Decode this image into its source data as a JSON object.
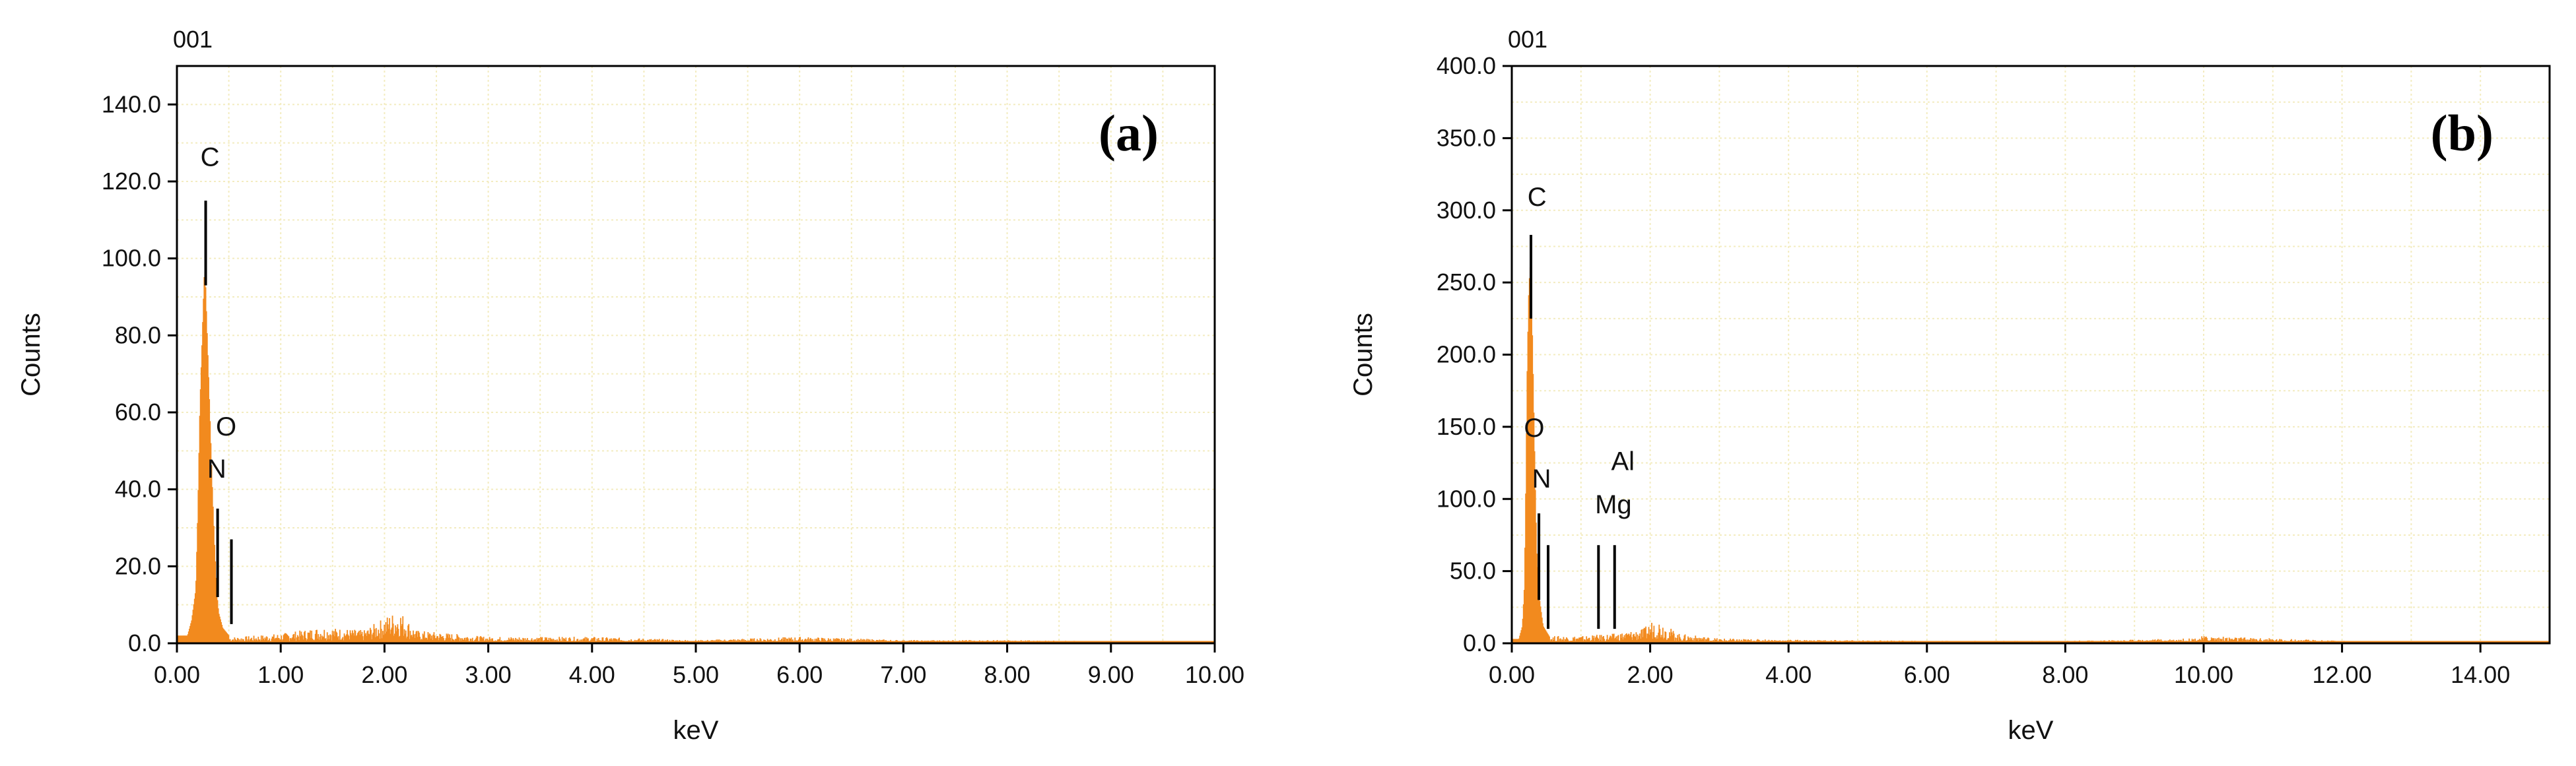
{
  "chart_data": [
    {
      "type": "bar",
      "panel_label": "(a)",
      "spectrum_id": "001",
      "xlabel": "keV",
      "ylabel": "Counts",
      "xlim": [
        0,
        10
      ],
      "ylim": [
        0,
        150
      ],
      "x_ticks": [
        "0.00",
        "1.00",
        "2.00",
        "3.00",
        "4.00",
        "5.00",
        "6.00",
        "7.00",
        "8.00",
        "9.00",
        "10.00"
      ],
      "x_tick_values": [
        0,
        1,
        2,
        3,
        4,
        5,
        6,
        7,
        8,
        9,
        10
      ],
      "y_ticks": [
        "0.0",
        "20.0",
        "40.0",
        "60.0",
        "80.0",
        "100.0",
        "120.0",
        "140.0"
      ],
      "y_tick_values": [
        0,
        20,
        40,
        60,
        80,
        100,
        120,
        140
      ],
      "grid": true,
      "series_color": "#F28A1E",
      "peak_points": [
        [
          0.1,
          2
        ],
        [
          0.14,
          6
        ],
        [
          0.18,
          14
        ],
        [
          0.2,
          35
        ],
        [
          0.22,
          62
        ],
        [
          0.24,
          78
        ],
        [
          0.26,
          95
        ],
        [
          0.27,
          97
        ],
        [
          0.28,
          88
        ],
        [
          0.3,
          72
        ],
        [
          0.32,
          56
        ],
        [
          0.34,
          40
        ],
        [
          0.36,
          26
        ],
        [
          0.38,
          14
        ],
        [
          0.4,
          8
        ],
        [
          0.44,
          4
        ],
        [
          0.5,
          2
        ]
      ],
      "background": [
        [
          0.6,
          1.0
        ],
        [
          1.0,
          1.5
        ],
        [
          1.4,
          2.5
        ],
        [
          1.8,
          2.0
        ],
        [
          2.05,
          4.5
        ],
        [
          2.15,
          5.0
        ],
        [
          2.3,
          2.0
        ],
        [
          3.0,
          1.0
        ],
        [
          4.0,
          1.0
        ],
        [
          5.0,
          0.5
        ],
        [
          6.0,
          1.0
        ],
        [
          7.0,
          0.5
        ],
        [
          8.0,
          0.5
        ],
        [
          9.0,
          0.3
        ],
        [
          10.0,
          0.2
        ]
      ],
      "markers": [
        {
          "element": "C",
          "energy": 0.277,
          "line_top": 115,
          "line_bottom": 93,
          "label_dx": -0.05,
          "label_y": 124
        },
        {
          "element": "N",
          "energy": 0.392,
          "line_top": 35,
          "line_bottom": 12,
          "label_dx": -0.1,
          "label_y": 43
        },
        {
          "element": "O",
          "energy": 0.525,
          "line_top": 27,
          "line_bottom": 5,
          "label_dx": -0.15,
          "label_y": 54
        }
      ]
    },
    {
      "type": "bar",
      "panel_label": "(b)",
      "spectrum_id": "001",
      "xlabel": "keV",
      "ylabel": "Counts",
      "xlim": [
        0,
        15
      ],
      "ylim": [
        0,
        400
      ],
      "x_ticks": [
        "0.00",
        "2.00",
        "4.00",
        "6.00",
        "8.00",
        "10.00",
        "12.00",
        "14.00"
      ],
      "x_tick_values": [
        0,
        2,
        4,
        6,
        8,
        10,
        12,
        14
      ],
      "y_ticks": [
        "0.0",
        "50.0",
        "100.0",
        "150.0",
        "200.0",
        "250.0",
        "300.0",
        "350.0",
        "400.0"
      ],
      "y_tick_values": [
        0,
        50,
        100,
        150,
        200,
        250,
        300,
        350,
        400
      ],
      "grid": true,
      "series_color": "#F28A1E",
      "peak_points": [
        [
          0.1,
          3
        ],
        [
          0.15,
          12
        ],
        [
          0.18,
          40
        ],
        [
          0.2,
          110
        ],
        [
          0.22,
          190
        ],
        [
          0.24,
          240
        ],
        [
          0.26,
          262
        ],
        [
          0.28,
          250
        ],
        [
          0.3,
          200
        ],
        [
          0.32,
          150
        ],
        [
          0.34,
          100
        ],
        [
          0.36,
          60
        ],
        [
          0.4,
          30
        ],
        [
          0.45,
          12
        ],
        [
          0.55,
          4
        ]
      ],
      "background": [
        [
          0.7,
          3
        ],
        [
          1.0,
          3
        ],
        [
          1.5,
          4
        ],
        [
          1.9,
          6
        ],
        [
          2.05,
          10
        ],
        [
          2.15,
          9
        ],
        [
          2.4,
          4
        ],
        [
          3.0,
          2
        ],
        [
          4.0,
          1.5
        ],
        [
          6.0,
          1
        ],
        [
          8.0,
          1
        ],
        [
          9.8,
          2
        ],
        [
          10.0,
          3
        ],
        [
          12.0,
          1
        ],
        [
          14.0,
          0.5
        ],
        [
          15.0,
          0.3
        ]
      ],
      "markers": [
        {
          "element": "C",
          "energy": 0.277,
          "line_top": 283,
          "line_bottom": 225,
          "label_dx": -0.05,
          "label_y": 303
        },
        {
          "element": "N",
          "energy": 0.392,
          "line_top": 90,
          "line_bottom": 30,
          "label_dx": -0.1,
          "label_y": 108
        },
        {
          "element": "O",
          "energy": 0.525,
          "line_top": 68,
          "line_bottom": 10,
          "label_dx": -0.35,
          "label_y": 143
        },
        {
          "element": "Mg",
          "energy": 1.253,
          "line_top": 68,
          "line_bottom": 10,
          "label_dx": -0.05,
          "label_y": 90
        },
        {
          "element": "Al",
          "energy": 1.486,
          "line_top": 68,
          "line_bottom": 10,
          "label_dx": -0.05,
          "label_y": 120
        }
      ]
    }
  ]
}
